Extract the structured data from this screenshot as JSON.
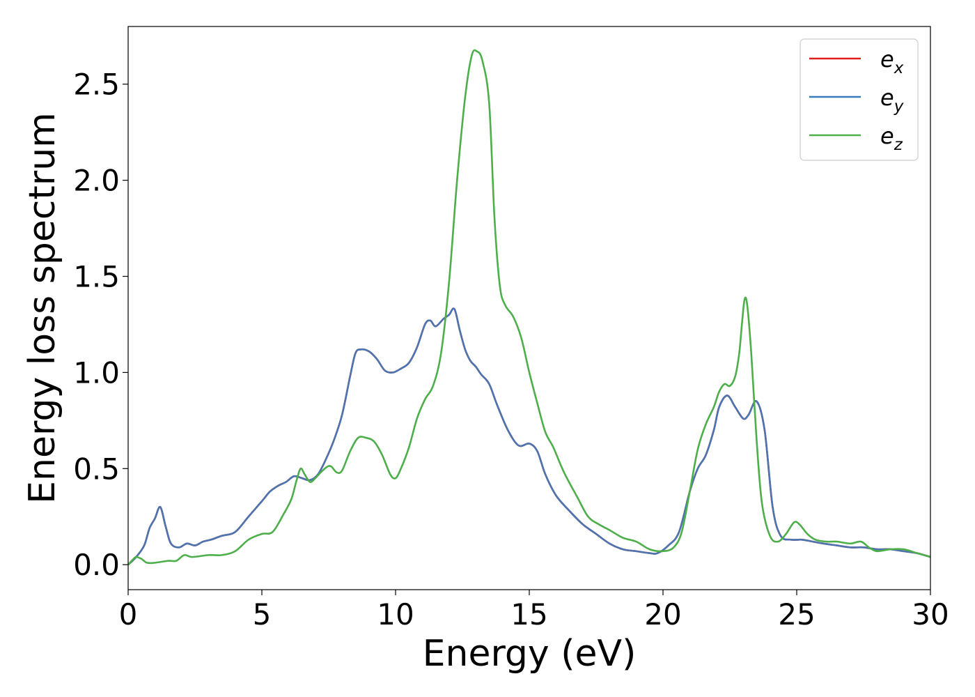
{
  "chart_data": {
    "type": "line",
    "title": "",
    "xlabel": "Energy (eV)",
    "ylabel": "Energy loss spectrum",
    "xlim": [
      0,
      30
    ],
    "ylim": [
      -0.13,
      2.8
    ],
    "xticks": [
      0,
      5,
      10,
      15,
      20,
      25,
      30
    ],
    "xtick_labels": [
      "0",
      "5",
      "10",
      "15",
      "20",
      "25",
      "30"
    ],
    "yticks": [
      0.0,
      0.5,
      1.0,
      1.5,
      2.0,
      2.5
    ],
    "ytick_labels": [
      "0.0",
      "0.5",
      "1.0",
      "1.5",
      "2.0",
      "2.5"
    ],
    "grid": false,
    "legend_position": "top-right",
    "legend": [
      {
        "base": "e",
        "sub": "x",
        "color": "#e41a1c"
      },
      {
        "base": "e",
        "sub": "y",
        "color": "#377eb8"
      },
      {
        "base": "e",
        "sub": "z",
        "color": "#4daf4a"
      }
    ],
    "series": [
      {
        "color": "#e41a1c",
        "x": [
          0,
          0.3,
          0.6,
          0.8,
          1.0,
          1.2,
          1.4,
          1.6,
          1.9,
          2.2,
          2.5,
          2.8,
          3.1,
          3.5,
          4.0,
          4.5,
          5.0,
          5.3,
          5.6,
          5.9,
          6.2,
          6.5,
          6.8,
          7.1,
          7.4,
          7.7,
          8.0,
          8.3,
          8.5,
          8.7,
          9.0,
          9.3,
          9.6,
          9.9,
          10.2,
          10.5,
          10.8,
          11.1,
          11.3,
          11.5,
          11.8,
          12.0,
          12.2,
          12.4,
          12.6,
          12.8,
          13.0,
          13.2,
          13.5,
          13.8,
          14.2,
          14.6,
          15.0,
          15.3,
          15.6,
          16.0,
          16.5,
          17.0,
          17.5,
          18.0,
          18.5,
          19.0,
          19.5,
          19.8,
          20.2,
          20.6,
          21.0,
          21.3,
          21.6,
          21.9,
          22.1,
          22.4,
          22.7,
          23.0,
          23.2,
          23.5,
          23.8,
          24.1,
          24.4,
          24.8,
          25.2,
          25.6,
          26.0,
          26.5,
          27.0,
          27.5,
          28.0,
          28.5,
          29.0,
          29.5,
          30.0
        ],
        "y": [
          0.0,
          0.04,
          0.1,
          0.19,
          0.24,
          0.3,
          0.2,
          0.11,
          0.09,
          0.11,
          0.1,
          0.12,
          0.13,
          0.15,
          0.17,
          0.25,
          0.33,
          0.38,
          0.41,
          0.43,
          0.46,
          0.45,
          0.44,
          0.47,
          0.55,
          0.65,
          0.78,
          0.98,
          1.1,
          1.12,
          1.11,
          1.07,
          1.01,
          1.0,
          1.02,
          1.05,
          1.13,
          1.25,
          1.27,
          1.24,
          1.28,
          1.3,
          1.33,
          1.22,
          1.12,
          1.06,
          1.03,
          0.99,
          0.94,
          0.83,
          0.7,
          0.62,
          0.63,
          0.59,
          0.47,
          0.36,
          0.28,
          0.21,
          0.16,
          0.11,
          0.08,
          0.07,
          0.06,
          0.06,
          0.1,
          0.17,
          0.38,
          0.5,
          0.57,
          0.7,
          0.82,
          0.88,
          0.82,
          0.76,
          0.78,
          0.85,
          0.7,
          0.3,
          0.15,
          0.13,
          0.13,
          0.12,
          0.11,
          0.1,
          0.09,
          0.09,
          0.08,
          0.08,
          0.07,
          0.06,
          0.04
        ]
      },
      {
        "color": "#4a75b0",
        "x": [
          0,
          0.3,
          0.6,
          0.8,
          1.0,
          1.2,
          1.4,
          1.6,
          1.9,
          2.2,
          2.5,
          2.8,
          3.1,
          3.5,
          4.0,
          4.5,
          5.0,
          5.3,
          5.6,
          5.9,
          6.2,
          6.5,
          6.8,
          7.1,
          7.4,
          7.7,
          8.0,
          8.3,
          8.5,
          8.7,
          9.0,
          9.3,
          9.6,
          9.9,
          10.2,
          10.5,
          10.8,
          11.1,
          11.3,
          11.5,
          11.8,
          12.0,
          12.2,
          12.4,
          12.6,
          12.8,
          13.0,
          13.2,
          13.5,
          13.8,
          14.2,
          14.6,
          15.0,
          15.3,
          15.6,
          16.0,
          16.5,
          17.0,
          17.5,
          18.0,
          18.5,
          19.0,
          19.5,
          19.8,
          20.2,
          20.6,
          21.0,
          21.3,
          21.6,
          21.9,
          22.1,
          22.4,
          22.7,
          23.0,
          23.2,
          23.5,
          23.8,
          24.1,
          24.4,
          24.8,
          25.2,
          25.6,
          26.0,
          26.5,
          27.0,
          27.5,
          28.0,
          28.5,
          29.0,
          29.5,
          30.0
        ],
        "y": [
          0.0,
          0.04,
          0.1,
          0.19,
          0.24,
          0.3,
          0.2,
          0.11,
          0.09,
          0.11,
          0.1,
          0.12,
          0.13,
          0.15,
          0.17,
          0.25,
          0.33,
          0.38,
          0.41,
          0.43,
          0.46,
          0.45,
          0.44,
          0.47,
          0.55,
          0.65,
          0.78,
          0.98,
          1.1,
          1.12,
          1.11,
          1.07,
          1.01,
          1.0,
          1.02,
          1.05,
          1.13,
          1.25,
          1.27,
          1.24,
          1.28,
          1.3,
          1.33,
          1.22,
          1.12,
          1.06,
          1.03,
          0.99,
          0.94,
          0.83,
          0.7,
          0.62,
          0.63,
          0.59,
          0.47,
          0.36,
          0.28,
          0.21,
          0.16,
          0.11,
          0.08,
          0.07,
          0.06,
          0.06,
          0.1,
          0.17,
          0.38,
          0.5,
          0.57,
          0.7,
          0.82,
          0.88,
          0.82,
          0.76,
          0.78,
          0.85,
          0.7,
          0.3,
          0.15,
          0.13,
          0.13,
          0.12,
          0.11,
          0.1,
          0.09,
          0.09,
          0.08,
          0.08,
          0.07,
          0.06,
          0.04
        ]
      },
      {
        "color": "#4daf4a",
        "x": [
          0,
          0.2,
          0.3,
          0.5,
          0.7,
          1.0,
          1.5,
          1.8,
          2.1,
          2.4,
          3.0,
          3.5,
          4.0,
          4.5,
          5.0,
          5.4,
          5.8,
          6.1,
          6.3,
          6.45,
          6.6,
          6.8,
          7.0,
          7.2,
          7.45,
          7.6,
          7.8,
          8.0,
          8.3,
          8.6,
          8.9,
          9.2,
          9.5,
          9.8,
          10.0,
          10.2,
          10.5,
          10.8,
          11.1,
          11.4,
          11.7,
          12.0,
          12.3,
          12.6,
          12.85,
          13.05,
          13.25,
          13.5,
          13.7,
          13.9,
          14.1,
          14.4,
          14.7,
          15.0,
          15.3,
          15.6,
          15.9,
          16.3,
          16.8,
          17.2,
          17.6,
          18.0,
          18.5,
          19.0,
          19.5,
          20.0,
          20.4,
          20.7,
          21.0,
          21.3,
          21.6,
          21.9,
          22.1,
          22.3,
          22.5,
          22.7,
          22.85,
          22.95,
          23.05,
          23.15,
          23.3,
          23.5,
          23.7,
          24.0,
          24.3,
          24.6,
          24.9,
          25.1,
          25.4,
          25.7,
          26.1,
          26.5,
          27.0,
          27.4,
          27.7,
          28.0,
          28.5,
          29.0,
          29.5,
          30.0
        ],
        "y": [
          0.0,
          0.03,
          0.04,
          0.03,
          0.01,
          0.01,
          0.02,
          0.02,
          0.05,
          0.04,
          0.05,
          0.05,
          0.07,
          0.13,
          0.16,
          0.17,
          0.26,
          0.34,
          0.44,
          0.5,
          0.47,
          0.43,
          0.45,
          0.48,
          0.51,
          0.51,
          0.48,
          0.49,
          0.59,
          0.66,
          0.66,
          0.64,
          0.57,
          0.47,
          0.45,
          0.5,
          0.61,
          0.76,
          0.86,
          0.93,
          1.1,
          1.47,
          2.0,
          2.43,
          2.65,
          2.67,
          2.62,
          2.4,
          1.8,
          1.45,
          1.35,
          1.29,
          1.18,
          1.0,
          0.84,
          0.69,
          0.61,
          0.48,
          0.35,
          0.25,
          0.21,
          0.18,
          0.14,
          0.12,
          0.08,
          0.07,
          0.09,
          0.17,
          0.38,
          0.6,
          0.73,
          0.82,
          0.9,
          0.94,
          0.93,
          0.98,
          1.1,
          1.25,
          1.38,
          1.35,
          1.1,
          0.65,
          0.32,
          0.15,
          0.12,
          0.16,
          0.22,
          0.21,
          0.16,
          0.13,
          0.12,
          0.12,
          0.11,
          0.12,
          0.09,
          0.07,
          0.08,
          0.08,
          0.06,
          0.04
        ]
      }
    ]
  }
}
